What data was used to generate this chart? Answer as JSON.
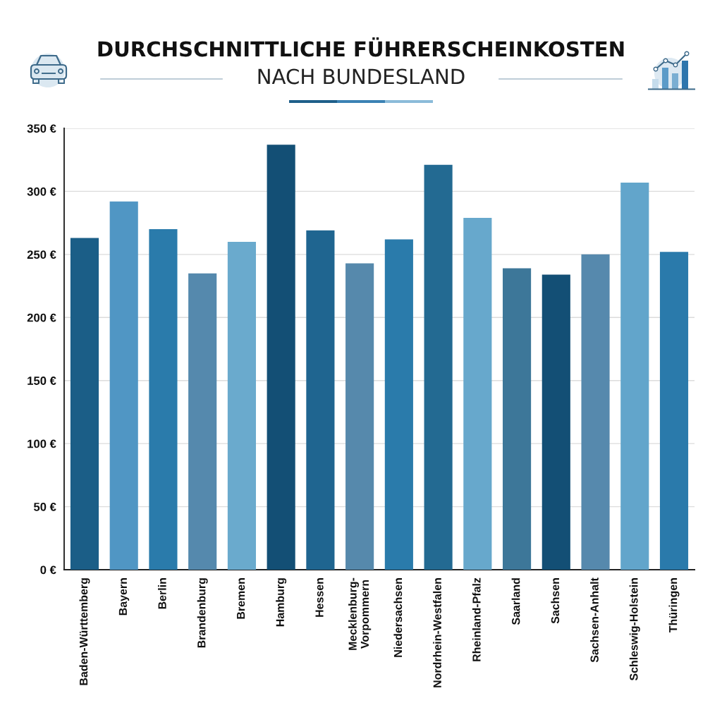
{
  "chart_data": {
    "type": "bar",
    "title": "DURCHSCHNITTLICHE FÜHRERSCHEINKOSTEN",
    "subtitle": "NACH BUNDESLAND",
    "categories": [
      "Baden-Württemberg",
      "Bayern",
      "Berlin",
      "Brandenburg",
      "Bremen",
      "Hamburg",
      "Hessen",
      "Mecklenburg-Vorpommern",
      "Niedersachsen",
      "Nordrhein-Westfalen",
      "Rheinland-Pfalz",
      "Saarland",
      "Sachsen",
      "Sachsen-Anhalt",
      "Schleswig-Holstein",
      "Thüringen"
    ],
    "values": [
      263,
      292,
      270,
      235,
      260,
      337,
      269,
      243,
      262,
      321,
      279,
      239,
      234,
      250,
      307,
      252
    ],
    "colors": [
      "#1b5e87",
      "#5096c4",
      "#2a7bab",
      "#5589ad",
      "#6aaacd",
      "#134f75",
      "#1f6590",
      "#5689ac",
      "#2a7bab",
      "#236a92",
      "#67a8cc",
      "#3d7799",
      "#134f75",
      "#5689ad",
      "#62a5cb",
      "#2a7aab"
    ],
    "ylim": [
      0,
      350
    ],
    "yticks": [
      {
        "value": 0,
        "label": "0 €"
      },
      {
        "value": 50,
        "label": "50 €"
      },
      {
        "value": 100,
        "label": "100 €"
      },
      {
        "value": 150,
        "label": "150 €"
      },
      {
        "value": 200,
        "label": "200 €"
      },
      {
        "value": 250,
        "label": "250 €"
      },
      {
        "value": 300,
        "label": "300 €"
      },
      {
        "value": 350,
        "label": "350 €"
      }
    ],
    "grid": "y"
  }
}
